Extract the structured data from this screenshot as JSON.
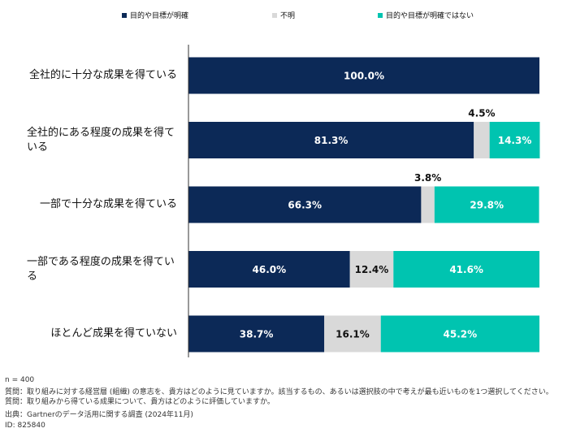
{
  "chart_data": {
    "type": "stacked-barh",
    "categories": [
      "全社的に十分な成果を得ている",
      "全社的にある程度の成果を得ている",
      "一部で十分な成果を得ている",
      "一部である程度の成果を得ている",
      "ほとんど成果を得ていない"
    ],
    "series": [
      {
        "name": "目的や目標が明確",
        "color": "#0c2957",
        "values": [
          100.0,
          81.3,
          66.3,
          46.0,
          38.7
        ],
        "value_labels": [
          "100.0%",
          "81.3%",
          "66.3%",
          "46.0%",
          "38.7%"
        ]
      },
      {
        "name": "不明",
        "color": "#d9d9d9",
        "values": [
          0,
          4.5,
          3.8,
          12.4,
          16.1
        ],
        "value_labels": [
          null,
          "4.5%",
          "3.8%",
          "12.4%",
          "16.1%"
        ]
      },
      {
        "name": "目的や目標が明確ではない",
        "color": "#00c4b0",
        "values": [
          0,
          14.3,
          29.8,
          41.6,
          45.2
        ],
        "value_labels": [
          null,
          "14.3%",
          "29.8%",
          "41.6%",
          "45.2%"
        ]
      }
    ],
    "xlim": [
      0,
      100
    ],
    "notes": [
      "n = 400",
      "質問：取り組みに対する経営層 (組織) の意志を、貴方はどのように見ていますか。該当するもの、あるいは選択肢の中で考えが最も近いものを1つ選択してください。",
      "質問：取り組みから得ている成果について、貴方はどのように評価していますか。",
      "出典：Gartnerのデータ活用に関する調査 (2024年11月)",
      "ID: 825840"
    ]
  }
}
